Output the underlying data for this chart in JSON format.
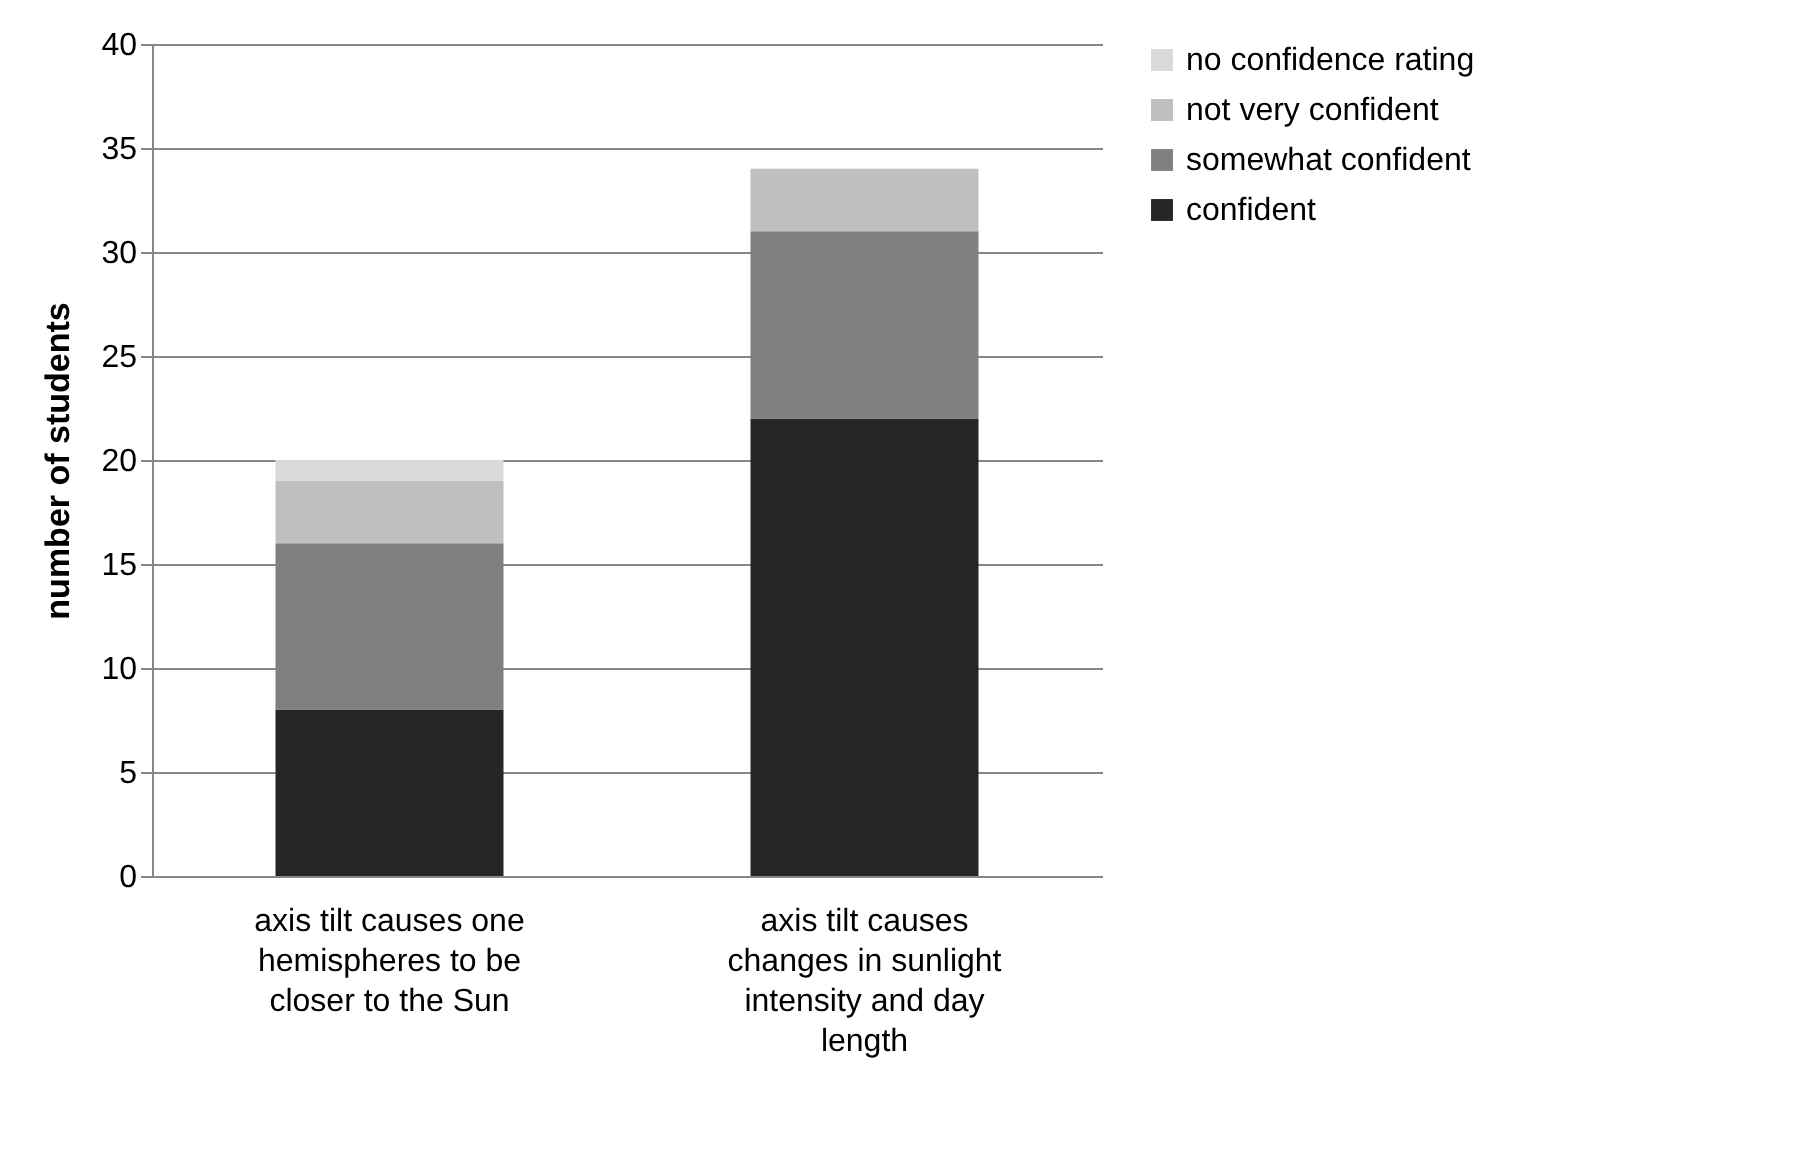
{
  "chart_data": {
    "type": "bar",
    "stacked": true,
    "ylabel": "number of students",
    "categories": [
      "axis tilt causes one hemispheres to be closer to the Sun",
      "axis tilt causes changes in sunlight intensity and day length"
    ],
    "series": [
      {
        "name": "confident",
        "color": "#262626",
        "values": [
          8,
          22
        ]
      },
      {
        "name": "somewhat confident",
        "color": "#808080",
        "values": [
          8,
          9
        ]
      },
      {
        "name": "not very confident",
        "color": "#bfbfbf",
        "values": [
          3,
          3
        ]
      },
      {
        "name": "no confidence rating",
        "color": "#d9d9d9",
        "values": [
          1,
          0
        ]
      }
    ],
    "ylim": [
      0,
      40
    ],
    "yticks": [
      0,
      5,
      10,
      15,
      20,
      25,
      30,
      35,
      40
    ],
    "grid": "y",
    "legend": "right"
  }
}
